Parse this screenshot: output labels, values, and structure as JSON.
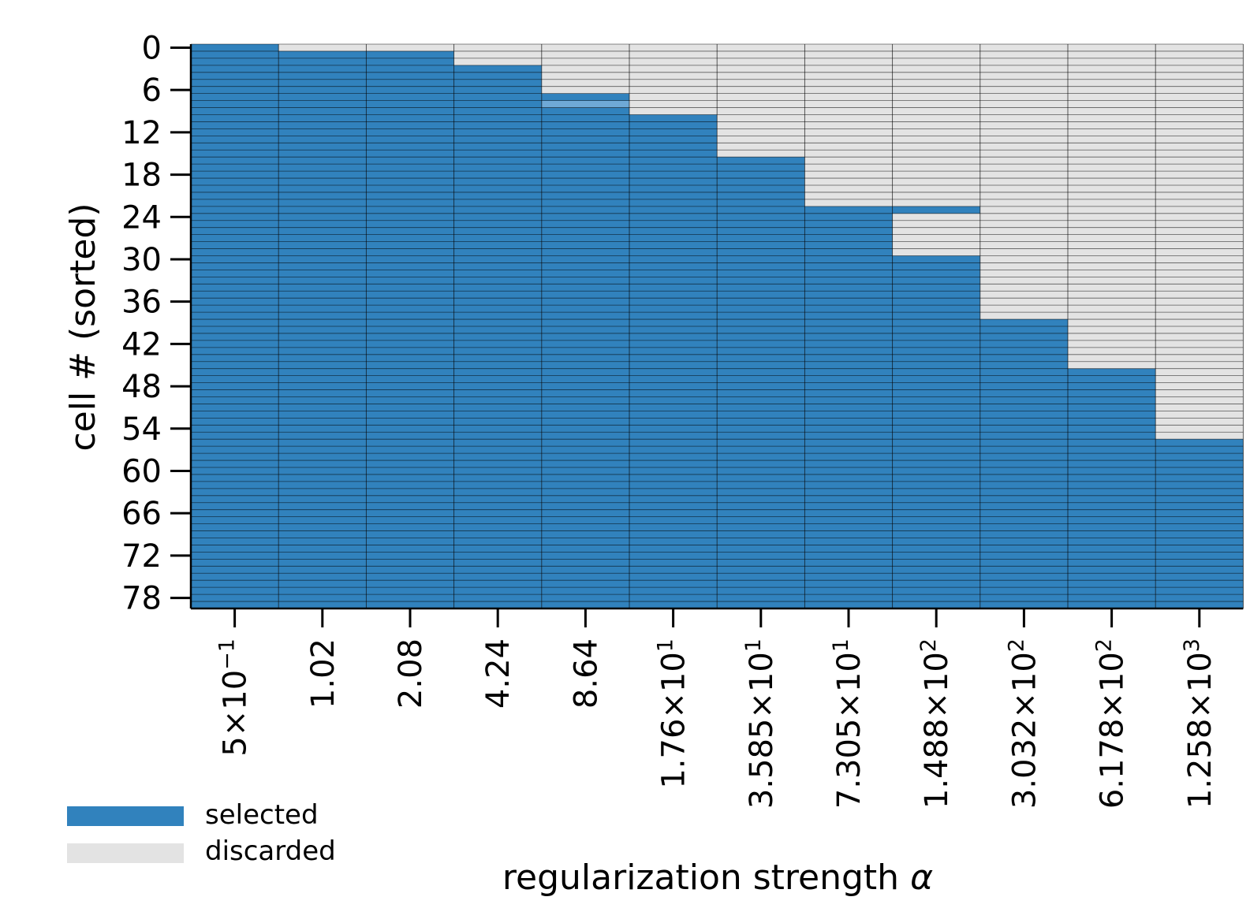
{
  "chart_data": {
    "type": "heatmap",
    "xlabel_text": "regularization strength ",
    "xlabel_symbol": "α",
    "ylabel": "cell # (sorted)",
    "n_cells": 80,
    "y_ticks": [
      "0",
      "6",
      "12",
      "18",
      "24",
      "30",
      "36",
      "42",
      "48",
      "54",
      "60",
      "66",
      "72",
      "78"
    ],
    "columns": [
      {
        "mantissa": "5×10",
        "exp": "−1",
        "n_discarded": 0
      },
      {
        "mantissa": "1.02",
        "exp": "",
        "n_discarded": 1
      },
      {
        "mantissa": "2.08",
        "exp": "",
        "n_discarded": 1
      },
      {
        "mantissa": "4.24",
        "exp": "",
        "n_discarded": 3
      },
      {
        "mantissa": "8.64",
        "exp": "",
        "n_discarded": 7,
        "partial_rows": [
          8
        ]
      },
      {
        "mantissa": "1.76×10",
        "exp": "1",
        "n_discarded": 10
      },
      {
        "mantissa": "3.585×10",
        "exp": "1",
        "n_discarded": 16
      },
      {
        "mantissa": "7.305×10",
        "exp": "1",
        "n_discarded": 23
      },
      {
        "mantissa": "1.488×10",
        "exp": "2",
        "n_discarded": 30,
        "selected_rows_extra": [
          23
        ]
      },
      {
        "mantissa": "3.032×10",
        "exp": "2",
        "n_discarded": 39
      },
      {
        "mantissa": "6.178×10",
        "exp": "2",
        "n_discarded": 46
      },
      {
        "mantissa": "1.258×10",
        "exp": "3",
        "n_discarded": 56
      }
    ],
    "legend": [
      {
        "label": "selected",
        "color": "#3182bd"
      },
      {
        "label": "discarded",
        "color": "#e3e3e3"
      }
    ],
    "colors": {
      "selected": "#3182bd",
      "discarded": "#e3e3e3",
      "partial": "#6fa9d6",
      "grid": "#000000"
    }
  }
}
